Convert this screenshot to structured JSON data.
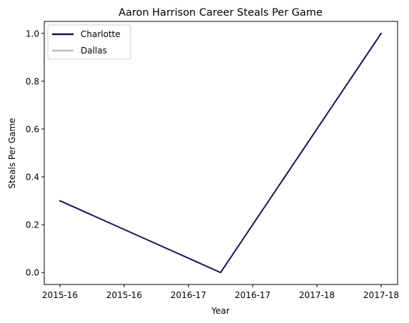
{
  "chart_data": {
    "type": "line",
    "title": "Aaron Harrison Career Steals Per Game",
    "xlabel": "Year",
    "ylabel": "Steals Per Game",
    "x_tick_labels": [
      "2015-16",
      "2015-16",
      "2016-17",
      "2016-17",
      "2017-18",
      "2017-18"
    ],
    "y_ticks": [
      0.0,
      0.2,
      0.4,
      0.6,
      0.8,
      1.0
    ],
    "y_tick_labels": [
      "0.0",
      "0.2",
      "0.4",
      "0.6",
      "0.8",
      "1.0"
    ],
    "ylim": [
      -0.05,
      1.05
    ],
    "grid": false,
    "legend_position": "top-left",
    "series": [
      {
        "name": "Charlotte",
        "color": "#1a1456",
        "points": [
          {
            "x": 0,
            "y": 0.3
          },
          {
            "x": 1,
            "y": 0.0
          },
          {
            "x": 2,
            "y": 1.0
          }
        ]
      },
      {
        "name": "Dallas",
        "color": "#c0c0c0",
        "points": []
      }
    ]
  }
}
